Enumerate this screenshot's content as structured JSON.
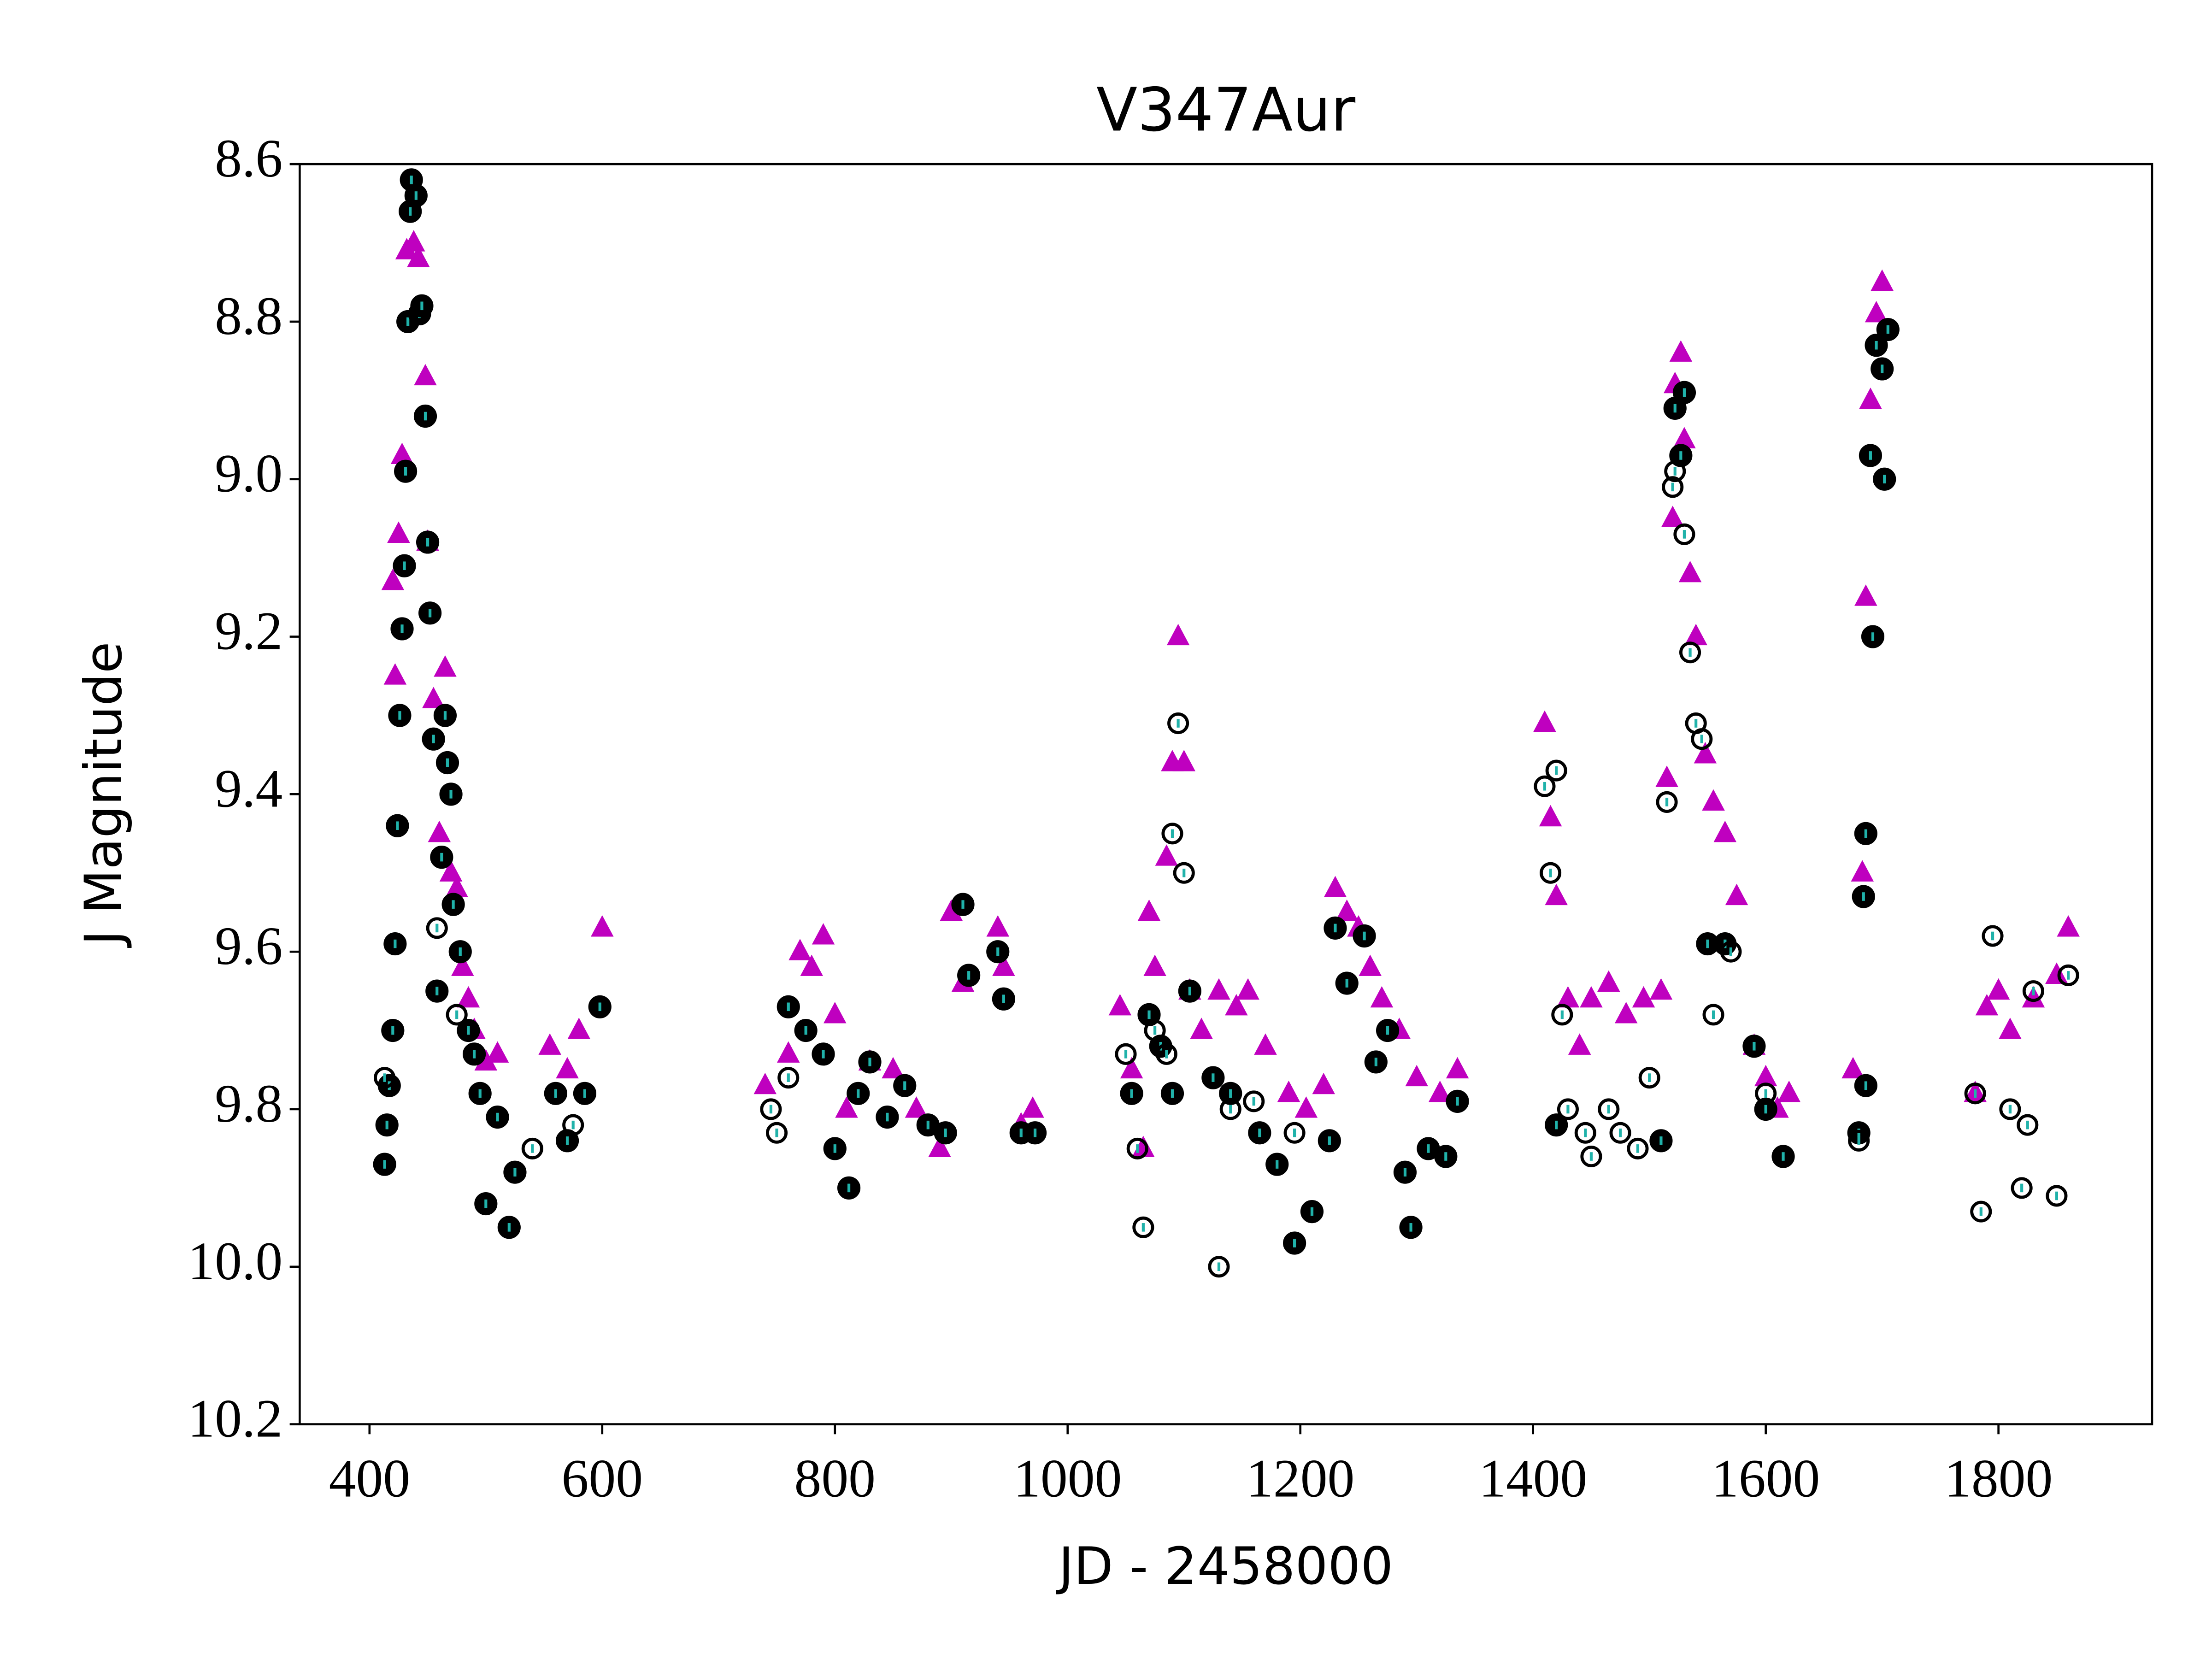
{
  "chart_data": {
    "type": "scatter",
    "title": "V347Aur",
    "x_label": "JD - 2458000",
    "y_label": "J Magnitude",
    "xlim": [
      340,
      1932
    ],
    "ylim": [
      10.2,
      8.6
    ],
    "xticks": [
      400,
      600,
      800,
      1000,
      1200,
      1400,
      1600,
      1800
    ],
    "yticks": [
      {
        "value": 8.6,
        "label": "8.6"
      },
      {
        "value": 8.8,
        "label": "8.8"
      },
      {
        "value": 9,
        "label": "9.0"
      },
      {
        "value": 9.2,
        "label": "9.2"
      },
      {
        "value": 9.4,
        "label": "9.4"
      },
      {
        "value": 9.6,
        "label": "9.6"
      },
      {
        "value": 9.8,
        "label": "9.8"
      },
      {
        "value": 10,
        "label": "10.0"
      },
      {
        "value": 10.2,
        "label": "10.2"
      }
    ],
    "series": [
      {
        "color": "#bf00bf",
        "marker": "triangle",
        "filled": true,
        "x": [
          420,
          422,
          425,
          428,
          432,
          438,
          442,
          448,
          450,
          455,
          460,
          465,
          470,
          475,
          480,
          485,
          490,
          500,
          510,
          555,
          570,
          580,
          600,
          740,
          760,
          770,
          780,
          790,
          800,
          810,
          830,
          850,
          870,
          890,
          900,
          910,
          940,
          945,
          960,
          970,
          1045,
          1055,
          1065,
          1070,
          1075,
          1085,
          1090,
          1095,
          1100,
          1105,
          1115,
          1130,
          1145,
          1155,
          1170,
          1190,
          1205,
          1220,
          1230,
          1240,
          1250,
          1260,
          1270,
          1285,
          1300,
          1320,
          1335,
          1410,
          1415,
          1420,
          1430,
          1440,
          1450,
          1465,
          1480,
          1495,
          1510,
          1515,
          1520,
          1522,
          1527,
          1530,
          1535,
          1540,
          1548,
          1555,
          1565,
          1575,
          1590,
          1600,
          1610,
          1620,
          1675,
          1683,
          1686,
          1690,
          1695,
          1700,
          1780,
          1790,
          1800,
          1810,
          1830,
          1850,
          1860
        ],
        "values": [
          9.13,
          9.25,
          9.07,
          8.97,
          8.71,
          8.7,
          8.72,
          8.87,
          9.08,
          9.28,
          9.45,
          9.24,
          9.5,
          9.52,
          9.62,
          9.66,
          9.7,
          9.74,
          9.73,
          9.72,
          9.75,
          9.7,
          9.57,
          9.77,
          9.73,
          9.6,
          9.62,
          9.58,
          9.68,
          9.8,
          9.74,
          9.75,
          9.8,
          9.85,
          9.55,
          9.64,
          9.57,
          9.62,
          9.82,
          9.8,
          9.67,
          9.75,
          9.85,
          9.55,
          9.62,
          9.48,
          9.36,
          9.2,
          9.36,
          9.65,
          9.7,
          9.65,
          9.67,
          9.65,
          9.72,
          9.78,
          9.8,
          9.77,
          9.52,
          9.55,
          9.57,
          9.62,
          9.66,
          9.7,
          9.76,
          9.78,
          9.75,
          9.31,
          9.43,
          9.53,
          9.66,
          9.72,
          9.66,
          9.64,
          9.68,
          9.66,
          9.65,
          9.38,
          9.05,
          8.88,
          8.84,
          8.95,
          9.12,
          9.2,
          9.35,
          9.41,
          9.45,
          9.53,
          9.72,
          9.76,
          9.8,
          9.78,
          9.75,
          9.5,
          9.15,
          8.9,
          8.79,
          8.75,
          9.78,
          9.67,
          9.65,
          9.7,
          9.66,
          9.63,
          9.57
        ]
      },
      {
        "color": "#000000",
        "marker": "circle",
        "filled": true,
        "x": [
          413,
          415,
          417,
          420,
          422,
          424,
          426,
          428,
          430,
          431,
          433,
          435,
          436,
          440,
          443,
          445,
          448,
          450,
          452,
          455,
          458,
          462,
          465,
          467,
          470,
          472,
          478,
          485,
          490,
          495,
          500,
          510,
          520,
          525,
          560,
          570,
          585,
          598,
          760,
          775,
          790,
          800,
          812,
          820,
          830,
          845,
          860,
          880,
          895,
          910,
          915,
          940,
          945,
          960,
          972,
          1055,
          1070,
          1080,
          1090,
          1105,
          1125,
          1140,
          1165,
          1180,
          1195,
          1210,
          1225,
          1230,
          1240,
          1255,
          1265,
          1275,
          1290,
          1295,
          1310,
          1325,
          1335,
          1420,
          1510,
          1522,
          1527,
          1530,
          1550,
          1565,
          1590,
          1600,
          1615,
          1680,
          1684,
          1686,
          1690,
          1692,
          1695,
          1700,
          1702,
          1705,
          1686
        ],
        "values": [
          9.87,
          9.82,
          9.77,
          9.7,
          9.59,
          9.44,
          9.3,
          9.19,
          9.11,
          8.99,
          8.8,
          8.66,
          8.62,
          8.64,
          8.79,
          8.78,
          8.92,
          9.08,
          9.17,
          9.33,
          9.65,
          9.48,
          9.3,
          9.36,
          9.4,
          9.54,
          9.6,
          9.7,
          9.73,
          9.78,
          9.92,
          9.81,
          9.95,
          9.88,
          9.78,
          9.84,
          9.78,
          9.67,
          9.67,
          9.7,
          9.73,
          9.85,
          9.9,
          9.78,
          9.74,
          9.81,
          9.77,
          9.82,
          9.83,
          9.54,
          9.63,
          9.6,
          9.66,
          9.83,
          9.83,
          9.78,
          9.68,
          9.72,
          9.78,
          9.65,
          9.76,
          9.78,
          9.83,
          9.87,
          9.97,
          9.93,
          9.84,
          9.57,
          9.64,
          9.58,
          9.74,
          9.7,
          9.88,
          9.95,
          9.85,
          9.86,
          9.79,
          9.82,
          9.84,
          8.91,
          8.97,
          8.89,
          9.59,
          9.59,
          9.72,
          9.8,
          9.86,
          9.83,
          9.53,
          9.45,
          8.97,
          9.2,
          8.83,
          8.86,
          9.0,
          8.81,
          9.77
        ]
      },
      {
        "color": "#000000",
        "marker": "circle",
        "filled": false,
        "x": [
          413,
          458,
          475,
          540,
          575,
          745,
          750,
          760,
          1050,
          1060,
          1065,
          1075,
          1085,
          1090,
          1095,
          1100,
          1130,
          1140,
          1160,
          1195,
          1410,
          1415,
          1420,
          1425,
          1430,
          1445,
          1450,
          1465,
          1475,
          1490,
          1500,
          1515,
          1520,
          1522,
          1530,
          1535,
          1540,
          1545,
          1555,
          1570,
          1600,
          1680,
          1780,
          1785,
          1795,
          1810,
          1820,
          1825,
          1850,
          1860,
          1830
        ],
        "values": [
          9.76,
          9.57,
          9.68,
          9.85,
          9.82,
          9.8,
          9.83,
          9.76,
          9.73,
          9.85,
          9.95,
          9.7,
          9.73,
          9.45,
          9.31,
          9.5,
          10.0,
          9.8,
          9.79,
          9.83,
          9.39,
          9.5,
          9.37,
          9.68,
          9.8,
          9.83,
          9.86,
          9.8,
          9.83,
          9.85,
          9.76,
          9.41,
          9.01,
          8.99,
          9.07,
          9.22,
          9.31,
          9.33,
          9.68,
          9.6,
          9.78,
          9.84,
          9.78,
          9.93,
          9.58,
          9.8,
          9.9,
          9.82,
          9.91,
          9.63,
          9.65
        ]
      }
    ]
  }
}
